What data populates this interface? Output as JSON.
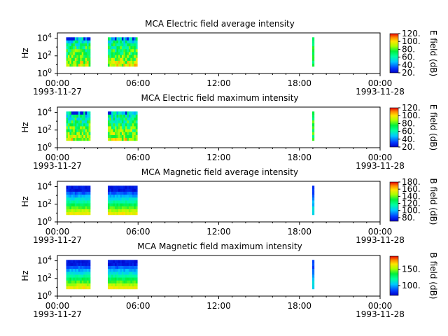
{
  "chart_data": [
    {
      "type": "heatmap",
      "title": "MCA  Electric field average intensity",
      "ylabel": "Hz",
      "y_scale": "log",
      "y_ticks": [
        {
          "exp": "0"
        },
        {
          "exp": "2"
        },
        {
          "exp": "4"
        }
      ],
      "x_ticks": [
        "00:00",
        "06:00",
        "12:00",
        "18:00",
        "00:00"
      ],
      "x_start_date": "1993-11-27",
      "x_end_date": "1993-11-28",
      "colorbar_label": "E field (dB)",
      "colorbar_ticks": [
        "20.",
        "40.",
        "60.",
        "80.",
        "100.",
        "120."
      ],
      "colorbar_range": [
        20,
        120
      ],
      "data_intervals_hours": [
        [
          0.65,
          2.45
        ],
        [
          3.75,
          5.95
        ],
        [
          18.95,
          19.1
        ]
      ],
      "palette": "rainbow"
    },
    {
      "type": "heatmap",
      "title": "MCA  Electric field maximum intensity",
      "ylabel": "Hz",
      "y_scale": "log",
      "y_ticks": [
        {
          "exp": "0"
        },
        {
          "exp": "2"
        },
        {
          "exp": "4"
        }
      ],
      "x_ticks": [
        "00:00",
        "06:00",
        "12:00",
        "18:00",
        "00:00"
      ],
      "x_start_date": "1993-11-27",
      "x_end_date": "1993-11-28",
      "colorbar_label": "E field (dB)",
      "colorbar_ticks": [
        "20.",
        "40.",
        "60.",
        "80.",
        "100.",
        "120."
      ],
      "colorbar_range": [
        20,
        120
      ],
      "data_intervals_hours": [
        [
          0.65,
          2.45
        ],
        [
          3.75,
          5.95
        ],
        [
          18.95,
          19.1
        ]
      ],
      "palette": "rainbow"
    },
    {
      "type": "heatmap",
      "title": "MCA  Magnetic field average intensity",
      "ylabel": "Hz",
      "y_scale": "log",
      "y_ticks": [
        {
          "exp": "0"
        },
        {
          "exp": "2"
        },
        {
          "exp": "4"
        }
      ],
      "x_ticks": [
        "00:00",
        "06:00",
        "12:00",
        "18:00",
        "00:00"
      ],
      "x_start_date": "1993-11-27",
      "x_end_date": "1993-11-28",
      "colorbar_label": "B field (dB)",
      "colorbar_ticks": [
        "80.",
        "100.",
        "120.",
        "140.",
        "160.",
        "180."
      ],
      "colorbar_range": [
        70,
        180
      ],
      "data_intervals_hours": [
        [
          0.65,
          2.45
        ],
        [
          3.75,
          5.95
        ],
        [
          18.95,
          19.1
        ]
      ],
      "palette": "rainbow"
    },
    {
      "type": "heatmap",
      "title": "MCA  Magnetic field maximum intensity",
      "ylabel": "Hz",
      "y_scale": "log",
      "y_ticks": [
        {
          "exp": "0"
        },
        {
          "exp": "2"
        },
        {
          "exp": "4"
        }
      ],
      "x_ticks": [
        "00:00",
        "06:00",
        "12:00",
        "18:00",
        "00:00"
      ],
      "x_start_date": "1993-11-27",
      "x_end_date": "1993-11-28",
      "colorbar_label": "B field (dB)",
      "colorbar_ticks": [
        "100.",
        "150."
      ],
      "colorbar_range": [
        70,
        190
      ],
      "data_intervals_hours": [
        [
          0.65,
          2.45
        ],
        [
          3.75,
          5.95
        ],
        [
          18.95,
          19.1
        ]
      ],
      "palette": "rainbow"
    }
  ]
}
